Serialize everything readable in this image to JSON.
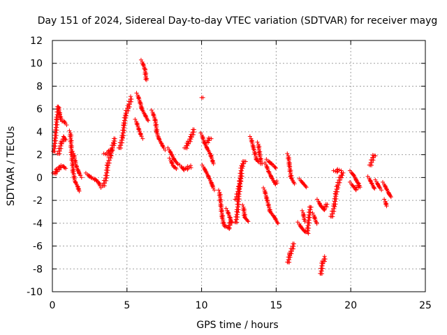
{
  "chart_data": {
    "type": "scatter",
    "title": "Day 151 of 2024, Sidereal Day-to-day VTEC variation (SDTVAR) for receiver mayg",
    "xlabel": "GPS time / hours",
    "ylabel": "SDTVAR / TECUs",
    "xlim": [
      0,
      25
    ],
    "ylim": [
      -10,
      12
    ],
    "x_ticks": [
      0,
      5,
      10,
      15,
      20,
      25
    ],
    "y_ticks": [
      -10,
      -8,
      -6,
      -4,
      -2,
      0,
      2,
      4,
      6,
      8,
      10,
      12
    ],
    "x_tick_labels": [
      "0",
      "5",
      "10",
      "15",
      "20",
      "25"
    ],
    "y_tick_labels": [
      "-10",
      "-8",
      "-6",
      "-4",
      "-2",
      "0",
      "2",
      "4",
      "6",
      "8",
      "10",
      "12"
    ],
    "grid": true,
    "marker": "plus",
    "color": "#ff0000",
    "series": [
      {
        "name": "SDTVAR",
        "segments": [
          [
            [
              0.1,
              2.2
            ],
            [
              0.2,
              3.5
            ],
            [
              0.3,
              5.0
            ],
            [
              0.4,
              6.2
            ],
            [
              0.5,
              5.5
            ],
            [
              0.6,
              5.0
            ],
            [
              0.8,
              4.9
            ],
            [
              0.9,
              4.7
            ]
          ],
          [
            [
              0.1,
              0.3
            ],
            [
              0.3,
              0.6
            ],
            [
              0.5,
              0.9
            ],
            [
              0.7,
              1.0
            ],
            [
              0.9,
              0.8
            ]
          ],
          [
            [
              0.4,
              2.0
            ],
            [
              0.6,
              3.0
            ],
            [
              0.8,
              3.5
            ],
            [
              0.9,
              3.3
            ]
          ],
          [
            [
              1.2,
              4.0
            ],
            [
              1.3,
              2.0
            ],
            [
              1.4,
              0.5
            ],
            [
              1.5,
              -0.3
            ],
            [
              1.7,
              -0.8
            ],
            [
              1.8,
              -1.2
            ]
          ],
          [
            [
              1.4,
              2.2
            ],
            [
              1.6,
              1.0
            ],
            [
              1.8,
              0.4
            ],
            [
              1.9,
              0.1
            ]
          ],
          [
            [
              2.3,
              0.3
            ],
            [
              2.6,
              0.0
            ],
            [
              2.9,
              -0.2
            ],
            [
              3.1,
              -0.4
            ],
            [
              3.2,
              -0.8
            ]
          ],
          [
            [
              3.4,
              -0.8
            ],
            [
              3.6,
              0.0
            ],
            [
              3.7,
              1.0
            ],
            [
              3.9,
              2.0
            ],
            [
              4.1,
              3.0
            ],
            [
              4.2,
              3.4
            ]
          ],
          [
            [
              3.5,
              2.0
            ],
            [
              3.8,
              2.2
            ],
            [
              4.0,
              2.5
            ]
          ],
          [
            [
              4.5,
              2.5
            ],
            [
              4.7,
              3.5
            ],
            [
              4.8,
              4.5
            ],
            [
              4.9,
              5.5
            ],
            [
              5.1,
              6.2
            ],
            [
              5.3,
              7.0
            ]
          ],
          [
            [
              5.7,
              7.3
            ],
            [
              5.9,
              6.5
            ],
            [
              6.0,
              6.0
            ],
            [
              6.2,
              5.5
            ],
            [
              6.4,
              5.0
            ]
          ],
          [
            [
              6.0,
              10.2
            ],
            [
              6.2,
              9.5
            ],
            [
              6.3,
              8.5
            ]
          ],
          [
            [
              5.6,
              5.0
            ],
            [
              5.8,
              4.2
            ],
            [
              6.0,
              3.5
            ]
          ],
          [
            [
              6.7,
              5.8
            ],
            [
              6.9,
              5.0
            ],
            [
              7.0,
              4.0
            ],
            [
              7.1,
              3.5
            ],
            [
              7.3,
              3.0
            ],
            [
              7.5,
              2.5
            ]
          ],
          [
            [
              7.8,
              2.5
            ],
            [
              8.0,
              2.0
            ],
            [
              8.2,
              1.5
            ],
            [
              8.4,
              1.2
            ]
          ],
          [
            [
              7.9,
              1.6
            ],
            [
              8.1,
              1.0
            ],
            [
              8.3,
              0.8
            ]
          ],
          [
            [
              8.9,
              2.5
            ],
            [
              9.1,
              3.0
            ],
            [
              9.3,
              3.5
            ],
            [
              9.5,
              4.2
            ]
          ],
          [
            [
              8.6,
              1.0
            ],
            [
              8.8,
              0.7
            ],
            [
              9.0,
              0.8
            ],
            [
              9.3,
              1.0
            ]
          ],
          [
            [
              10.0,
              7.0
            ]
          ],
          [
            [
              10.0,
              3.8
            ],
            [
              10.2,
              3.0
            ],
            [
              10.4,
              2.5
            ],
            [
              10.6,
              2.0
            ],
            [
              10.8,
              1.2
            ]
          ],
          [
            [
              10.1,
              1.0
            ],
            [
              10.3,
              0.5
            ],
            [
              10.5,
              0.0
            ],
            [
              10.7,
              -0.6
            ],
            [
              10.8,
              -1.0
            ]
          ],
          [
            [
              10.3,
              3.0
            ],
            [
              10.6,
              3.5
            ]
          ],
          [
            [
              11.2,
              -1.2
            ],
            [
              11.3,
              -2.5
            ],
            [
              11.4,
              -3.5
            ],
            [
              11.5,
              -4.2
            ],
            [
              11.8,
              -4.4
            ],
            [
              12.0,
              -3.8
            ]
          ],
          [
            [
              11.7,
              -2.8
            ],
            [
              11.9,
              -3.5
            ],
            [
              12.0,
              -4.0
            ]
          ],
          [
            [
              12.3,
              -4.0
            ],
            [
              12.4,
              -3.0
            ],
            [
              12.5,
              -1.5
            ],
            [
              12.6,
              0.0
            ],
            [
              12.7,
              1.0
            ],
            [
              12.9,
              1.5
            ]
          ],
          [
            [
              12.3,
              -2.0
            ],
            [
              12.5,
              -1.0
            ],
            [
              12.7,
              0.5
            ]
          ],
          [
            [
              12.8,
              -2.5
            ],
            [
              12.9,
              -3.5
            ],
            [
              13.1,
              -3.8
            ]
          ],
          [
            [
              13.3,
              3.5
            ],
            [
              13.5,
              2.5
            ],
            [
              13.7,
              1.5
            ],
            [
              13.9,
              1.3
            ]
          ],
          [
            [
              13.8,
              3.0
            ],
            [
              13.9,
              2.0
            ],
            [
              14.0,
              1.3
            ]
          ],
          [
            [
              14.3,
              1.2
            ],
            [
              14.5,
              0.5
            ],
            [
              14.7,
              0.0
            ],
            [
              14.9,
              -0.5
            ],
            [
              15.1,
              -0.4
            ]
          ],
          [
            [
              14.4,
              1.5
            ],
            [
              14.7,
              1.2
            ],
            [
              15.0,
              0.8
            ]
          ],
          [
            [
              14.2,
              -1.0
            ],
            [
              14.4,
              -2.0
            ],
            [
              14.6,
              -3.0
            ],
            [
              14.9,
              -3.5
            ],
            [
              15.1,
              -4.0
            ]
          ],
          [
            [
              15.8,
              2.0
            ],
            [
              15.9,
              1.0
            ],
            [
              16.0,
              0.0
            ],
            [
              16.2,
              -0.5
            ]
          ],
          [
            [
              15.8,
              -7.5
            ],
            [
              15.9,
              -6.8
            ],
            [
              16.0,
              -6.5
            ],
            [
              16.2,
              -5.8
            ]
          ],
          [
            [
              16.5,
              -4.0
            ],
            [
              16.7,
              -4.4
            ],
            [
              16.9,
              -4.7
            ],
            [
              17.1,
              -4.8
            ],
            [
              17.2,
              -3.5
            ],
            [
              17.3,
              -2.5
            ]
          ],
          [
            [
              16.8,
              -3.0
            ],
            [
              16.9,
              -3.8
            ]
          ],
          [
            [
              16.6,
              -0.2
            ],
            [
              16.8,
              -0.5
            ],
            [
              17.0,
              -0.8
            ]
          ],
          [
            [
              17.5,
              -3.2
            ],
            [
              17.7,
              -4.0
            ]
          ],
          [
            [
              17.8,
              -2.0
            ],
            [
              18.0,
              -2.5
            ],
            [
              18.2,
              -2.8
            ],
            [
              18.4,
              -2.3
            ]
          ],
          [
            [
              18.0,
              -8.5
            ],
            [
              18.1,
              -7.5
            ],
            [
              18.3,
              -7.0
            ]
          ],
          [
            [
              18.7,
              -3.5
            ],
            [
              18.9,
              -2.5
            ],
            [
              19.0,
              -1.5
            ],
            [
              19.1,
              -0.8
            ],
            [
              19.3,
              0.0
            ],
            [
              19.5,
              0.4
            ]
          ],
          [
            [
              18.9,
              0.5
            ],
            [
              19.1,
              0.6
            ],
            [
              19.3,
              0.7
            ]
          ],
          [
            [
              20.0,
              0.5
            ],
            [
              20.2,
              0.2
            ],
            [
              20.4,
              -0.3
            ],
            [
              20.6,
              -0.8
            ]
          ],
          [
            [
              20.0,
              -0.5
            ],
            [
              20.3,
              -1.0
            ],
            [
              20.6,
              -0.6
            ]
          ],
          [
            [
              21.2,
              0.0
            ],
            [
              21.4,
              -0.5
            ],
            [
              21.6,
              -1.0
            ]
          ],
          [
            [
              21.3,
              1.0
            ],
            [
              21.5,
              1.8
            ],
            [
              21.6,
              2.0
            ]
          ],
          [
            [
              21.7,
              -0.3
            ],
            [
              21.9,
              -0.8
            ],
            [
              22.0,
              -1.0
            ]
          ],
          [
            [
              22.2,
              -0.5
            ],
            [
              22.4,
              -1.0
            ],
            [
              22.6,
              -1.5
            ],
            [
              22.7,
              -1.7
            ]
          ],
          [
            [
              22.3,
              -2.0
            ],
            [
              22.4,
              -2.5
            ]
          ]
        ]
      }
    ]
  }
}
